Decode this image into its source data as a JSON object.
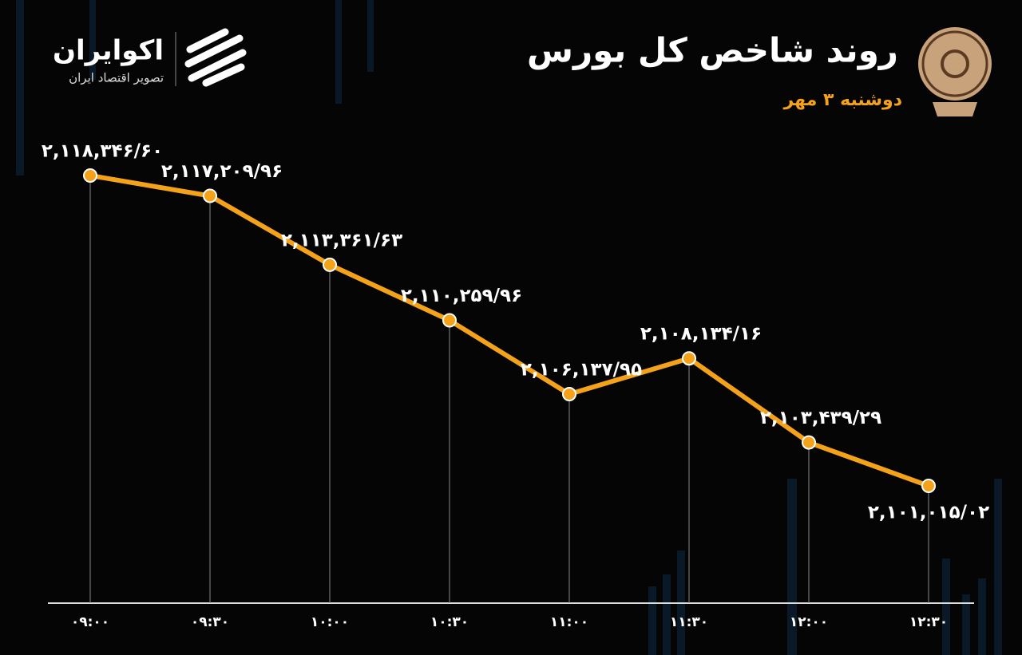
{
  "brand": {
    "name": "اکوایران",
    "tagline": "تصویر اقتصاد ایران"
  },
  "chart_data": {
    "type": "line",
    "title": "روند شاخص کل بورس",
    "subtitle": "دوشنبه ۳ مهر",
    "categories": [
      "۰۹:۰۰",
      "۰۹:۳۰",
      "۱۰:۰۰",
      "۱۰:۳۰",
      "۱۱:۰۰",
      "۱۱:۳۰",
      "۱۲:۰۰",
      "۱۲:۳۰"
    ],
    "values": [
      2118346.6,
      2117209.96,
      2113361.63,
      2110259.96,
      2106137.95,
      2108134.16,
      2103439.29,
      2101015.02
    ],
    "value_labels": [
      "۲,۱۱۸,۳۴۶/۶۰",
      "۲,۱۱۷,۲۰۹/۹۶",
      "۲,۱۱۳,۳۶۱/۶۳",
      "۲,۱۱۰,۲۵۹/۹۶",
      "۲,۱۰۶,۱۳۷/۹۵",
      "۲,۱۰۸,۱۳۴/۱۶",
      "۲,۱۰۳,۴۳۹/۲۹",
      "۲,۱۰۱,۰۱۵/۰۲"
    ],
    "color": "#f5a21b"
  }
}
